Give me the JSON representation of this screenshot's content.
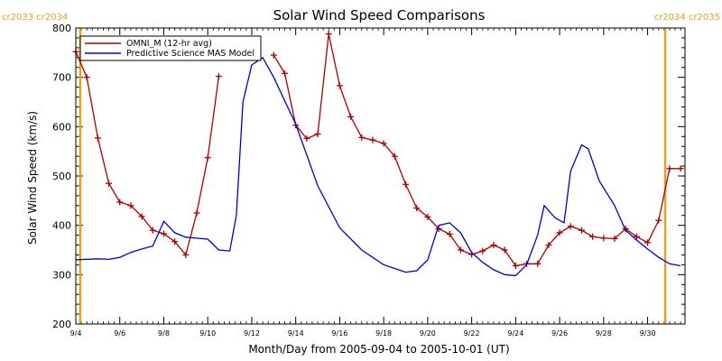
{
  "chart_data": {
    "type": "line",
    "title": "Solar Wind Speed Comparisons",
    "xlabel": "Month/Day from 2005-09-04 to 2005-10-01 (UT)",
    "ylabel": "Solar Wind Speed (km/s)",
    "xlim": [
      "2005-09-04",
      "2005-10-01"
    ],
    "ylim": [
      200,
      800
    ],
    "y_ticks": [
      200,
      300,
      400,
      500,
      600,
      700,
      800
    ],
    "x_tick_labels": [
      "9/4",
      "9/6",
      "9/8",
      "9/10",
      "9/12",
      "9/14",
      "9/16",
      "9/18",
      "9/20",
      "9/22",
      "9/24",
      "9/26",
      "9/28",
      "9/30"
    ],
    "x_tick_days": [
      0,
      2,
      4,
      6,
      8,
      10,
      12,
      14,
      16,
      18,
      20,
      22,
      24,
      26
    ],
    "legend_position": "top-left",
    "carrington_markers": [
      {
        "day": 0.2,
        "label": "cr2033 cr2034",
        "side": "left"
      },
      {
        "day": 26.8,
        "label": "cr2034 cr2035",
        "side": "right"
      }
    ],
    "series": [
      {
        "name": "OMNI_M (12-hr avg)",
        "color": "#aa0000",
        "marker": "plus",
        "segments": [
          [
            [
              0.0,
              752
            ],
            [
              0.5,
              700
            ],
            [
              1.0,
              577
            ],
            [
              1.5,
              485
            ],
            [
              2.0,
              447
            ],
            [
              2.5,
              440
            ],
            [
              3.0,
              418
            ],
            [
              3.5,
              390
            ],
            [
              4.0,
              383
            ],
            [
              4.5,
              367
            ],
            [
              5.0,
              340
            ],
            [
              5.5,
              425
            ],
            [
              6.0,
              537
            ],
            [
              6.5,
              702
            ]
          ],
          [
            [
              9.0,
              745
            ],
            [
              9.5,
              708
            ],
            [
              10.0,
              603
            ],
            [
              10.5,
              576
            ],
            [
              11.0,
              585
            ],
            [
              11.5,
              788
            ],
            [
              12.0,
              683
            ],
            [
              12.5,
              620
            ],
            [
              13.0,
              578
            ],
            [
              13.5,
              573
            ],
            [
              14.0,
              566
            ],
            [
              14.5,
              540
            ],
            [
              15.0,
              483
            ],
            [
              15.5,
              435
            ],
            [
              16.0,
              417
            ],
            [
              16.5,
              393
            ],
            [
              17.0,
              382
            ],
            [
              17.5,
              350
            ],
            [
              18.0,
              341
            ],
            [
              18.5,
              348
            ],
            [
              19.0,
              360
            ],
            [
              19.5,
              350
            ],
            [
              20.0,
              318
            ],
            [
              20.5,
              322
            ],
            [
              21.0,
              322
            ],
            [
              21.5,
              360
            ],
            [
              22.0,
              385
            ],
            [
              22.5,
              398
            ],
            [
              23.0,
              390
            ],
            [
              23.5,
              377
            ],
            [
              24.0,
              374
            ],
            [
              24.5,
              373
            ],
            [
              25.0,
              393
            ],
            [
              25.5,
              377
            ],
            [
              26.0,
              365
            ],
            [
              26.5,
              410
            ],
            [
              27.0,
              515
            ],
            [
              27.5,
              515
            ]
          ]
        ]
      },
      {
        "name": "Predictive Science MAS Model",
        "color": "#0000cc",
        "marker": "none",
        "segments": [
          [
            [
              0.0,
              330
            ],
            [
              1.0,
              332
            ],
            [
              1.5,
              331
            ],
            [
              2.0,
              335
            ],
            [
              2.5,
              345
            ],
            [
              3.0,
              352
            ],
            [
              3.5,
              358
            ],
            [
              4.0,
              408
            ],
            [
              4.5,
              385
            ],
            [
              5.0,
              376
            ],
            [
              5.5,
              374
            ],
            [
              6.0,
              372
            ],
            [
              6.5,
              350
            ],
            [
              7.0,
              348
            ],
            [
              7.3,
              420
            ],
            [
              7.6,
              650
            ],
            [
              8.0,
              725
            ],
            [
              8.5,
              740
            ],
            [
              9.0,
              700
            ],
            [
              10.0,
              605
            ],
            [
              11.0,
              480
            ],
            [
              12.0,
              395
            ],
            [
              13.0,
              350
            ],
            [
              14.0,
              320
            ],
            [
              15.0,
              305
            ],
            [
              15.5,
              308
            ],
            [
              16.0,
              330
            ],
            [
              16.5,
              400
            ],
            [
              17.0,
              405
            ],
            [
              17.5,
              385
            ],
            [
              18.0,
              345
            ],
            [
              18.5,
              325
            ],
            [
              19.0,
              310
            ],
            [
              19.5,
              300
            ],
            [
              20.0,
              298
            ],
            [
              20.5,
              320
            ],
            [
              21.0,
              380
            ],
            [
              21.3,
              440
            ],
            [
              21.8,
              415
            ],
            [
              22.2,
              405
            ],
            [
              22.5,
              510
            ],
            [
              23.0,
              563
            ],
            [
              23.3,
              555
            ],
            [
              23.8,
              490
            ],
            [
              24.5,
              440
            ],
            [
              25.0,
              390
            ],
            [
              25.5,
              370
            ],
            [
              26.0,
              352
            ],
            [
              26.5,
              335
            ],
            [
              27.0,
              322
            ],
            [
              27.5,
              318
            ]
          ]
        ]
      }
    ]
  }
}
